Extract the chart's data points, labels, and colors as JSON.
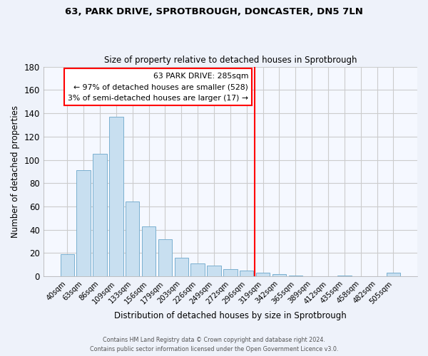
{
  "title": "63, PARK DRIVE, SPROTBROUGH, DONCASTER, DN5 7LN",
  "subtitle": "Size of property relative to detached houses in Sprotbrough",
  "xlabel": "Distribution of detached houses by size in Sprotbrough",
  "ylabel": "Number of detached properties",
  "bar_color": "#c8dff0",
  "bar_edge_color": "#7ab0d0",
  "background_color": "#eef2fa",
  "plot_bg_color": "#f5f8ff",
  "grid_color": "#cccccc",
  "categories": [
    "40sqm",
    "63sqm",
    "86sqm",
    "109sqm",
    "133sqm",
    "156sqm",
    "179sqm",
    "203sqm",
    "226sqm",
    "249sqm",
    "272sqm",
    "296sqm",
    "319sqm",
    "342sqm",
    "365sqm",
    "389sqm",
    "412sqm",
    "435sqm",
    "458sqm",
    "482sqm",
    "505sqm"
  ],
  "values": [
    19,
    91,
    105,
    137,
    64,
    43,
    32,
    16,
    11,
    9,
    6,
    5,
    3,
    2,
    1,
    0,
    0,
    1,
    0,
    0,
    3
  ],
  "ylim": [
    0,
    180
  ],
  "yticks": [
    0,
    20,
    40,
    60,
    80,
    100,
    120,
    140,
    160,
    180
  ],
  "vline_x": 11.5,
  "vline_color": "red",
  "annotation_title": "63 PARK DRIVE: 285sqm",
  "annotation_line1": "← 97% of detached houses are smaller (528)",
  "annotation_line2": "3% of semi-detached houses are larger (17) →",
  "footer1": "Contains HM Land Registry data © Crown copyright and database right 2024.",
  "footer2": "Contains public sector information licensed under the Open Government Licence v3.0."
}
